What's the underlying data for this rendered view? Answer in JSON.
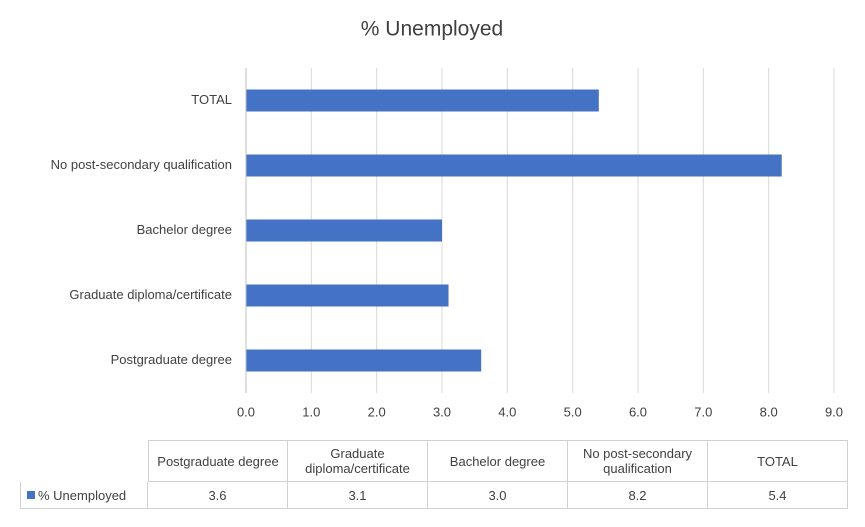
{
  "chart_data": {
    "type": "bar",
    "orientation": "horizontal",
    "title": "% Unemployed",
    "categories": [
      "Postgraduate degree",
      "Graduate diploma/certificate",
      "Bachelor degree",
      "No post-secondary qualification",
      "TOTAL"
    ],
    "series": [
      {
        "name": "% Unemployed",
        "color": "#4472c4",
        "values": [
          3.6,
          3.1,
          3.0,
          8.2,
          5.4
        ],
        "value_labels": [
          "3.6",
          "3.1",
          "3.0",
          "8.2",
          "5.4"
        ]
      }
    ],
    "xlim": [
      0,
      9
    ],
    "xticks": [
      {
        "value": 0,
        "label": "0.0"
      },
      {
        "value": 1,
        "label": "1.0"
      },
      {
        "value": 2,
        "label": "2.0"
      },
      {
        "value": 3,
        "label": "3.0"
      },
      {
        "value": 4,
        "label": "4.0"
      },
      {
        "value": 5,
        "label": "5.0"
      },
      {
        "value": 6,
        "label": "6.0"
      },
      {
        "value": 7,
        "label": "7.0"
      },
      {
        "value": 8,
        "label": "8.0"
      },
      {
        "value": 9,
        "label": "9.0"
      }
    ],
    "grid": true,
    "data_table": true
  }
}
